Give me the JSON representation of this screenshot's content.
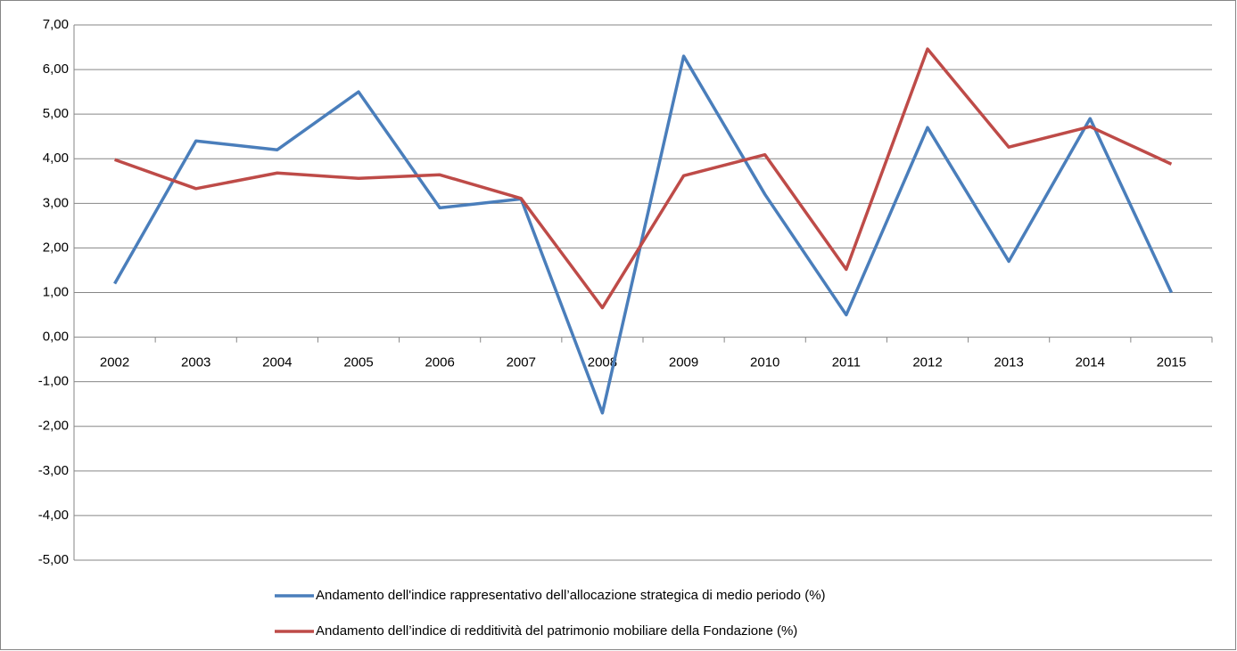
{
  "chart_data": {
    "type": "line",
    "categories": [
      "2002",
      "2003",
      "2004",
      "2005",
      "2006",
      "2007",
      "2008",
      "2009",
      "2010",
      "2011",
      "2012",
      "2013",
      "2014",
      "2015"
    ],
    "series": [
      {
        "name": "Andamento dell'indice rappresentativo dell’allocazione strategica di medio periodo (%)",
        "color": "#4a7ebb",
        "values": [
          1.2,
          4.4,
          4.2,
          5.5,
          2.9,
          3.1,
          -1.7,
          6.3,
          3.2,
          0.5,
          4.7,
          1.7,
          4.9,
          1.0
        ]
      },
      {
        "name": "Andamento dell’indice di redditività del patrimonio mobiliare della Fondazione (%)",
        "color": "#be4b48",
        "values": [
          3.98,
          3.33,
          3.68,
          3.56,
          3.64,
          3.11,
          0.66,
          3.62,
          4.09,
          1.52,
          6.46,
          4.26,
          4.72,
          3.88
        ]
      }
    ],
    "ylim": [
      -5,
      7
    ],
    "yticks": [
      {
        "value": -5,
        "label": "-5,00"
      },
      {
        "value": -4,
        "label": "-4,00"
      },
      {
        "value": -3,
        "label": "-3,00"
      },
      {
        "value": -2,
        "label": "-2,00"
      },
      {
        "value": -1,
        "label": "-1,00"
      },
      {
        "value": 0,
        "label": "0,00"
      },
      {
        "value": 1,
        "label": "1,00"
      },
      {
        "value": 2,
        "label": "2,00"
      },
      {
        "value": 3,
        "label": "3,00"
      },
      {
        "value": 4,
        "label": "4,00"
      },
      {
        "value": 5,
        "label": "5,00"
      },
      {
        "value": 6,
        "label": "6,00"
      },
      {
        "value": 7,
        "label": "7,00"
      }
    ],
    "grid": true,
    "legend": "bottom"
  }
}
